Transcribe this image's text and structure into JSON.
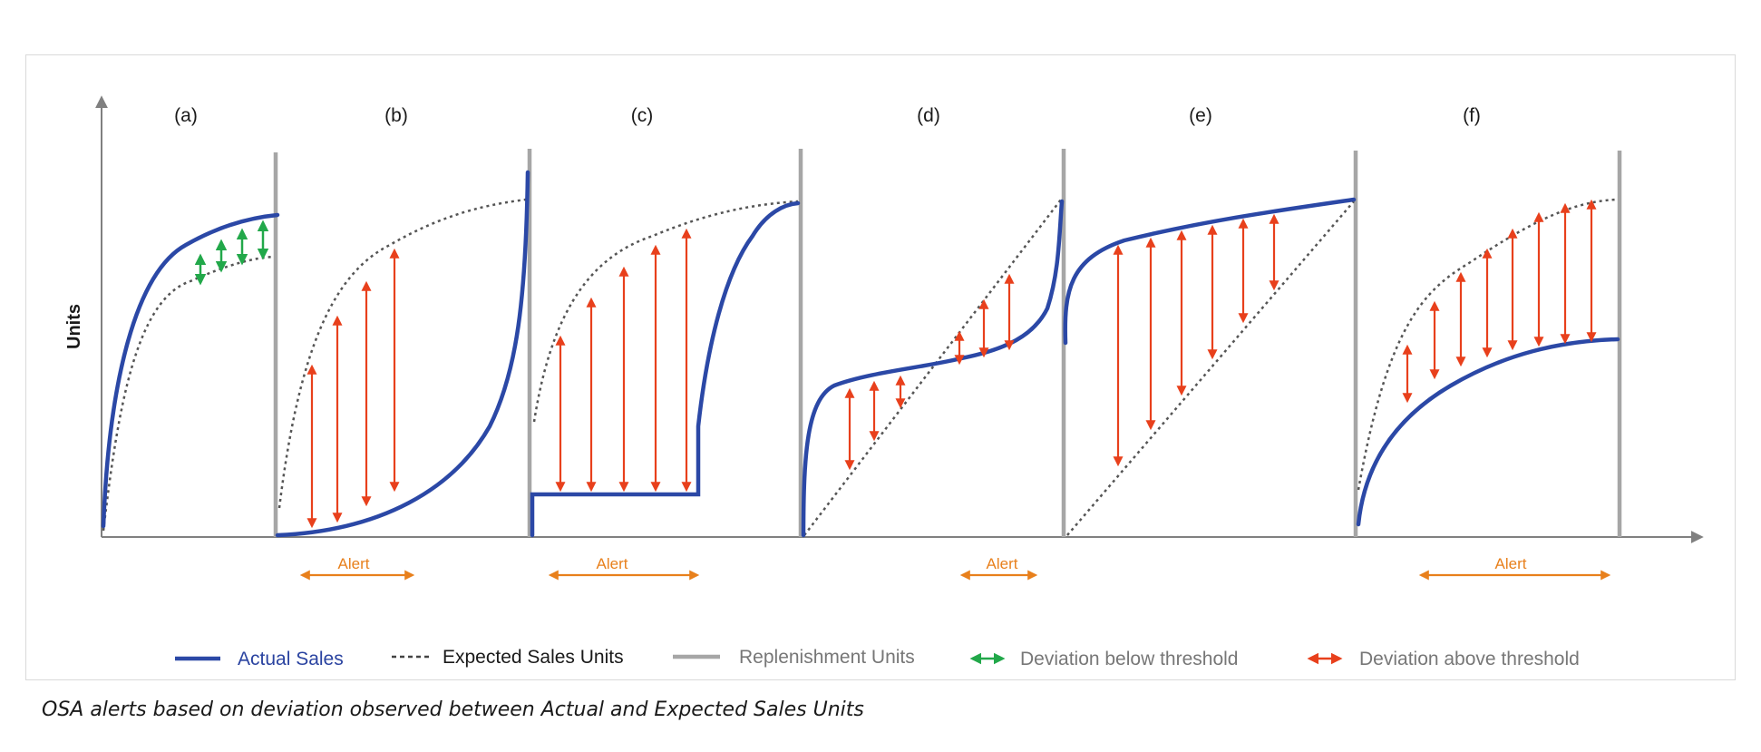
{
  "diagram": {
    "y_axis_label": "Units",
    "panels": [
      {
        "label": "(a)",
        "alert": ""
      },
      {
        "label": "(b)",
        "alert": "Alert"
      },
      {
        "label": "(c)",
        "alert": "Alert"
      },
      {
        "label": "(d)",
        "alert": "Alert"
      },
      {
        "label": "(e)",
        "alert": ""
      },
      {
        "label": "(f)",
        "alert": "Alert"
      }
    ],
    "legend": [
      {
        "label": "Actual Sales",
        "color": "#2a43a0",
        "icon": "solid-line-icon"
      },
      {
        "label": "Expected Sales Units",
        "color": "#1a1a1a",
        "icon": "dashed-line-icon"
      },
      {
        "label": "Replenishment Units",
        "color": "#777777",
        "icon": "gray-line-icon"
      },
      {
        "label": "Deviation below threshold",
        "color": "#777777",
        "icon": "green-double-arrow-icon"
      },
      {
        "label": "Deviation above threshold",
        "color": "#777777",
        "icon": "red-double-arrow-icon"
      }
    ],
    "colors": {
      "actual": "#2b48a6",
      "expected": "#555555",
      "replenishment": "#a6a6a6",
      "axis": "#808080",
      "below_threshold": "#22a84a",
      "above_threshold": "#e8401c",
      "alert": "#e8801c"
    }
  },
  "caption": "OSA alerts based on deviation observed between Actual and Expected Sales Units"
}
